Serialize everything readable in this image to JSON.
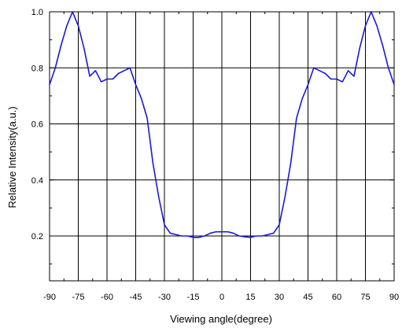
{
  "chart_data": {
    "type": "line",
    "title": "",
    "xlabel": "Viewing angle(degree)",
    "ylabel": "Relative Intensity(a.u.)",
    "xlim": [
      -90,
      90
    ],
    "ylim": [
      0.04,
      1.0
    ],
    "x_ticks": [
      -90,
      -75,
      -60,
      -45,
      -30,
      -15,
      0,
      15,
      30,
      45,
      60,
      75,
      90
    ],
    "x_tick_labels": [
      "-90",
      "-75",
      "-60",
      "-45",
      "-30",
      "-15",
      "0",
      "15",
      "30",
      "45",
      "60",
      "75",
      "90"
    ],
    "y_ticks": [
      0.2,
      0.4,
      0.6,
      0.8,
      1.0
    ],
    "y_tick_labels": [
      "0.2",
      "0.4",
      "0.6",
      "0.8",
      "1.0"
    ],
    "grid": true,
    "legend": "none",
    "colors": {
      "series": "#1a1ad6",
      "grid": "#000000",
      "axis": "#000000"
    },
    "series": [
      {
        "x": [
          -90,
          -87,
          -84,
          -81,
          -78,
          -75,
          -72,
          -69,
          -66,
          -63,
          -60,
          -57,
          -54,
          -51,
          -48,
          -45,
          -42,
          -39,
          -36,
          -33,
          -30,
          -27,
          -24,
          -21,
          -18,
          -15,
          -12,
          -9,
          -6,
          -3,
          0,
          3,
          6,
          9,
          12,
          15,
          18,
          21,
          24,
          27,
          30,
          33,
          36,
          39,
          42,
          45,
          48,
          51,
          54,
          57,
          60,
          63,
          66,
          69,
          72,
          75,
          78,
          81,
          84,
          87,
          90
        ],
        "y": [
          0.74,
          0.8,
          0.88,
          0.95,
          1.0,
          0.95,
          0.87,
          0.77,
          0.79,
          0.75,
          0.76,
          0.76,
          0.78,
          0.79,
          0.8,
          0.74,
          0.69,
          0.62,
          0.46,
          0.34,
          0.24,
          0.21,
          0.205,
          0.2,
          0.2,
          0.195,
          0.195,
          0.2,
          0.21,
          0.215,
          0.215,
          0.215,
          0.21,
          0.2,
          0.197,
          0.195,
          0.2,
          0.2,
          0.205,
          0.21,
          0.24,
          0.34,
          0.46,
          0.62,
          0.69,
          0.74,
          0.8,
          0.79,
          0.78,
          0.76,
          0.76,
          0.75,
          0.79,
          0.77,
          0.87,
          0.95,
          1.0,
          0.95,
          0.88,
          0.8,
          0.74
        ]
      }
    ]
  }
}
